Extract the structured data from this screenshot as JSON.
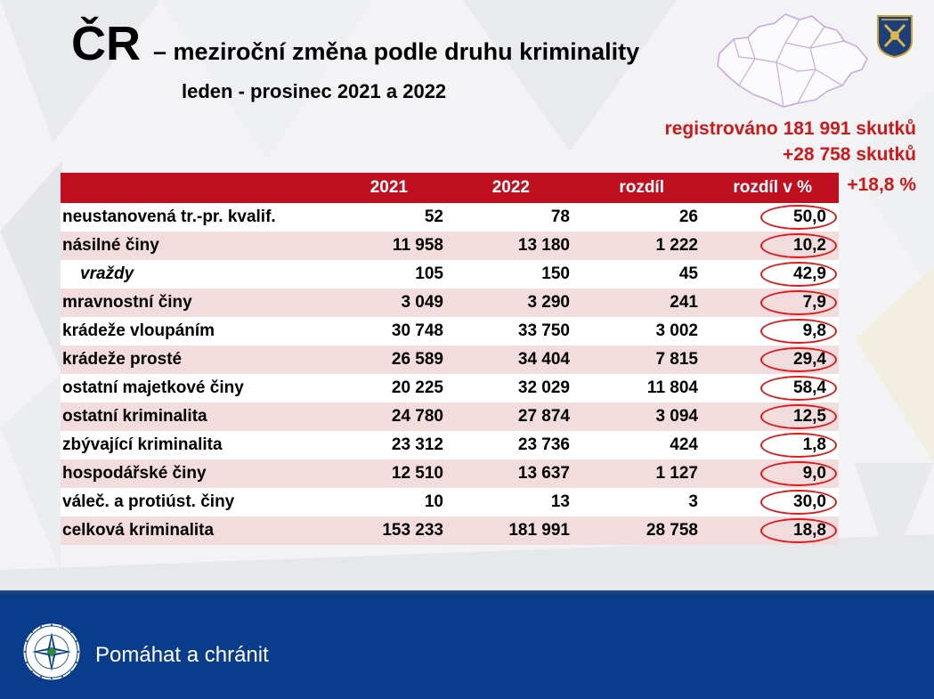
{
  "title": {
    "main": "ČR",
    "rest": "– meziroční změna podle druhu kriminality",
    "subtitle": "leden - prosinec 2021 a 2022"
  },
  "summary": {
    "registered": "registrováno 181 991 skutků",
    "difference": "+28 758 skutků",
    "percent": "+18,8 %"
  },
  "table": {
    "headers": [
      "",
      "2021",
      "2022",
      "rozdíl",
      "rozdíl v %"
    ],
    "rows": [
      {
        "label": "neustanovená tr.-pr. kvalif.",
        "y2021": "52",
        "y2022": "78",
        "diff": "26",
        "pct": "50,0"
      },
      {
        "label": "násilné činy",
        "y2021": "11 958",
        "y2022": "13 180",
        "diff": "1 222",
        "pct": "10,2"
      },
      {
        "label": "vraždy",
        "y2021": "105",
        "y2022": "150",
        "diff": "45",
        "pct": "42,9"
      },
      {
        "label": "mravnostní činy",
        "y2021": "3 049",
        "y2022": "3 290",
        "diff": "241",
        "pct": "7,9"
      },
      {
        "label": "krádeže vloupáním",
        "y2021": "30 748",
        "y2022": "33 750",
        "diff": "3 002",
        "pct": "9,8"
      },
      {
        "label": "krádeže prosté",
        "y2021": "26 589",
        "y2022": "34 404",
        "diff": "7 815",
        "pct": "29,4"
      },
      {
        "label": "ostatní majetkové činy",
        "y2021": "20 225",
        "y2022": "32 029",
        "diff": "11 804",
        "pct": "58,4"
      },
      {
        "label": "ostatní kriminalita",
        "y2021": "24 780",
        "y2022": "27 874",
        "diff": "3 094",
        "pct": "12,5"
      },
      {
        "label": "zbývající kriminalita",
        "y2021": "23 312",
        "y2022": "23 736",
        "diff": "424",
        "pct": "1,8"
      },
      {
        "label": "hospodářské činy",
        "y2021": "12 510",
        "y2022": "13 637",
        "diff": "1 127",
        "pct": "9,0"
      },
      {
        "label": "váleč. a protiúst. činy",
        "y2021": "10",
        "y2022": "13",
        "diff": "3",
        "pct": "30,0"
      },
      {
        "label": "celková kriminalita",
        "y2021": "153 233",
        "y2022": "181 991",
        "diff": "28 758",
        "pct": "18,8"
      }
    ]
  },
  "footer": {
    "motto": "Pomáhat a chránit"
  },
  "icons": {
    "map": "czech-regions-map-icon",
    "emblem": "police-directorate-emblem-icon",
    "police_logo": "police-star-logo-icon"
  },
  "colors": {
    "header_red": "#c00f1e",
    "accent_red": "#cc1a1a",
    "row_pink": "#f2dcdd",
    "footer_blue": "#0a3c8c"
  }
}
